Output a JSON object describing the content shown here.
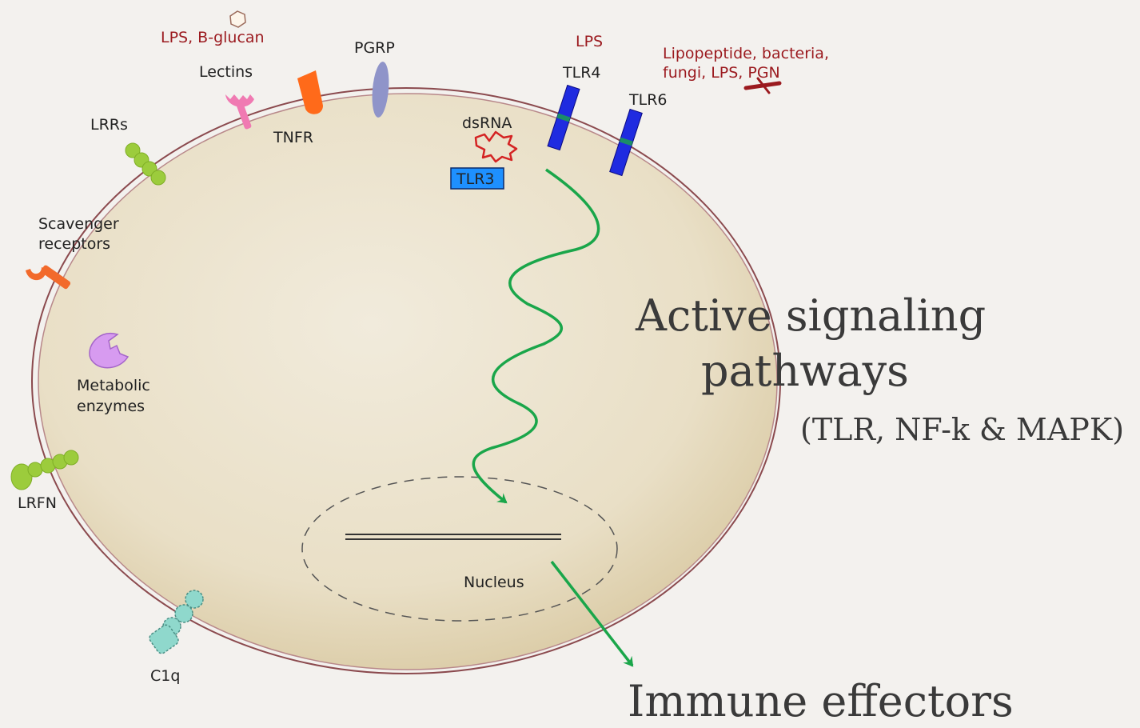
{
  "colors": {
    "background": "#f3f1ee",
    "cell_fill": "#e8dcc0",
    "membrane": "#8b4a4e",
    "arrow": "#1aa64a",
    "ligand_red": "#9b1a1f",
    "tlr_blue": "#1f2be0",
    "tlr3_box": "#1e90ff",
    "lrr_green": "#9ccc3c",
    "scavenger_orange": "#f26a2b",
    "enzyme_violet": "#d79bf0",
    "c1q_teal": "#8fd8cc",
    "pgrp_lavender": "#8f94c9",
    "tnfr_orange": "#ff6a1a",
    "lectin_pink": "#f07ab2"
  },
  "ligands": {
    "lps_bglucan": "LPS, B-glucan",
    "lps": "LPS",
    "lipopeptide_line1": "Lipopeptide, bacteria,",
    "lipopeptide_line2": "fungi, LPS, PGN"
  },
  "receptors": {
    "lectins": "Lectins",
    "pgrp": "PGRP",
    "tnfr": "TNFR",
    "tlr4": "TLR4",
    "tlr6": "TLR6",
    "dsrna": "dsRNA",
    "tlr3": "TLR3",
    "lrrs": "LRRs",
    "scavenger_line1": "Scavenger",
    "scavenger_line2": "receptors",
    "metabolic_line1": "Metabolic",
    "metabolic_line2": "enzymes",
    "lrfn": "LRFN",
    "c1q": "C1q"
  },
  "nucleus": {
    "label": "Nucleus"
  },
  "pathway": {
    "line1": "Active signaling",
    "line2": "pathways",
    "line3": "(TLR, NF-k & MAPK)"
  },
  "output": {
    "label": "Immune effectors"
  },
  "icons": [
    "hexagon-icon",
    "lectin-icon",
    "tnfr-icon",
    "pgrp-icon",
    "tlr4-icon",
    "tlr6-icon",
    "dsrna-icon",
    "lrr-icon",
    "scavenger-icon",
    "enzyme-icon",
    "lrfn-icon",
    "c1q-icon",
    "pgn-icon"
  ]
}
